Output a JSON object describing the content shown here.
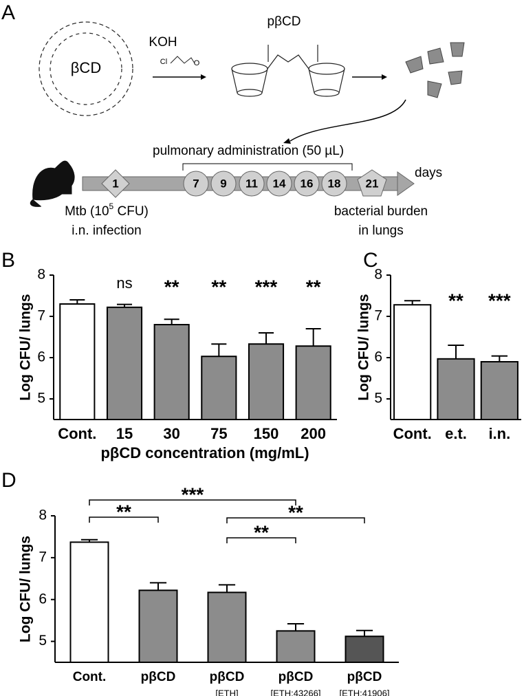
{
  "panel_labels": [
    "A",
    "B",
    "C",
    "D"
  ],
  "schematic": {
    "reactant": "βCD",
    "reagent": "KOH",
    "reagent_atoms": [
      "Cl",
      "O"
    ],
    "product": "pβCD",
    "administration": "pulmonary administration (50 µL)",
    "days": [
      "1",
      "7",
      "9",
      "11",
      "14",
      "16",
      "18",
      "21"
    ],
    "days_label": "days",
    "infection": [
      "Mtb (10",
      "5",
      " CFU)"
    ],
    "infection_route": "i.n. infection",
    "outcome": [
      "bacterial burden",
      "in lungs"
    ]
  },
  "chart_data": [
    {
      "type": "bar",
      "ylabel": "Log CFU/ lungs",
      "xlabel": "pβCD concentration (mg/mL)",
      "categories": [
        "Cont.",
        "15",
        "30",
        "75",
        "150",
        "200"
      ],
      "values": [
        7.3,
        7.22,
        6.8,
        6.03,
        6.33,
        6.28
      ],
      "errors": [
        0.1,
        0.07,
        0.13,
        0.3,
        0.27,
        0.42
      ],
      "colors": [
        "#ffffff",
        "#8c8c8c",
        "#8c8c8c",
        "#8c8c8c",
        "#8c8c8c",
        "#8c8c8c"
      ],
      "annotations": [
        null,
        "ns",
        "**",
        "**",
        "***",
        "**"
      ],
      "ylim": [
        4.5,
        8
      ],
      "yticks": [
        5,
        6,
        7,
        8
      ]
    },
    {
      "type": "bar",
      "ylabel": "Log CFU/ lungs",
      "categories": [
        "Cont.",
        "e.t.",
        "i.n."
      ],
      "values": [
        7.28,
        5.97,
        5.9
      ],
      "errors": [
        0.1,
        0.33,
        0.14
      ],
      "colors": [
        "#ffffff",
        "#8c8c8c",
        "#8c8c8c"
      ],
      "annotations": [
        null,
        "**",
        "***"
      ],
      "ylim": [
        4.5,
        8
      ],
      "yticks": [
        5,
        6,
        7,
        8
      ]
    },
    {
      "type": "bar",
      "ylabel": "Log CFU/ lungs",
      "categories": [
        "Cont.",
        "pβCD",
        "pβCD",
        "pβCD",
        "pβCD"
      ],
      "sublabels": [
        null,
        null,
        "[ETH]",
        "[ETH:43266]",
        "[ETH:41906]"
      ],
      "values": [
        7.37,
        6.22,
        6.17,
        5.25,
        5.12
      ],
      "errors": [
        0.06,
        0.18,
        0.18,
        0.17,
        0.14
      ],
      "colors": [
        "#ffffff",
        "#8c8c8c",
        "#8c8c8c",
        "#8c8c8c",
        "#555555"
      ],
      "brackets": [
        {
          "from": 0,
          "to": 1,
          "label": "**"
        },
        {
          "from": 0,
          "to": 3,
          "label": "***"
        },
        {
          "from": 2,
          "to": 3,
          "label": "**"
        },
        {
          "from": 2,
          "to": 4,
          "label": "**"
        }
      ],
      "ylim": [
        4.5,
        8
      ],
      "yticks": [
        5,
        6,
        7,
        8
      ]
    }
  ]
}
